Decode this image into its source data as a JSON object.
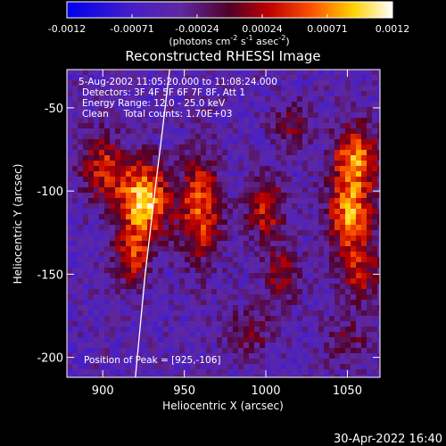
{
  "chart_data": {
    "type": "heatmap",
    "title": "Reconstructed RHESSI Image",
    "xlabel": "Heliocentric X (arcsec)",
    "ylabel": "Heliocentric Y (arcsec)",
    "xlim": [
      878,
      1070
    ],
    "ylim": [
      -212,
      -27
    ],
    "xticks": [
      900,
      950,
      1000,
      1050
    ],
    "yticks": [
      -50,
      -100,
      -150,
      -200
    ],
    "colorbar": {
      "ticks": [
        "-0.0012",
        "-0.00071",
        "-0.00024",
        "0.00024",
        "0.00071",
        "0.0012"
      ],
      "range": [
        -0.0012,
        0.0012
      ],
      "unit_label_parts": {
        "pre": "(photons cm",
        "exp1": "-2",
        "mid1": " s",
        "exp2": "-1",
        "mid2": " asec",
        "exp3": "-2",
        "post": ")"
      }
    },
    "annotations": [
      "5-Aug-2002 11:05:20.000 to 11:08:24.000",
      "Detectors: 3F 4F 5F 6F 7F 8F, Att 1",
      "Energy Range: 12.0 - 25.0 keV",
      "Clean     Total counts: 1.70E+03"
    ],
    "peak_label": "Position of Peak = [925,-106]",
    "peak": [
      925,
      -106
    ],
    "limb": [
      [
        941,
        -27
      ],
      [
        937,
        -60
      ],
      [
        932,
        -100
      ],
      [
        926,
        -150
      ],
      [
        920,
        -212
      ]
    ],
    "sources": [
      {
        "x": 900,
        "y": -85,
        "amp": 0.55,
        "sx": 10,
        "sy": 14
      },
      {
        "x": 925,
        "y": -106,
        "amp": 1.0,
        "sx": 11,
        "sy": 16
      },
      {
        "x": 918,
        "y": -140,
        "amp": 0.55,
        "sx": 8,
        "sy": 12
      },
      {
        "x": 960,
        "y": -110,
        "amp": 0.7,
        "sx": 9,
        "sy": 22
      },
      {
        "x": 1000,
        "y": -110,
        "amp": 0.55,
        "sx": 8,
        "sy": 14
      },
      {
        "x": 1010,
        "y": -150,
        "amp": 0.4,
        "sx": 8,
        "sy": 12
      },
      {
        "x": 1055,
        "y": -80,
        "amp": 0.75,
        "sx": 10,
        "sy": 14
      },
      {
        "x": 1052,
        "y": -115,
        "amp": 0.8,
        "sx": 10,
        "sy": 16
      },
      {
        "x": 1058,
        "y": -150,
        "amp": 0.45,
        "sx": 9,
        "sy": 12
      },
      {
        "x": 1015,
        "y": -60,
        "amp": 0.35,
        "sx": 8,
        "sy": 10
      },
      {
        "x": 990,
        "y": -185,
        "amp": 0.35,
        "sx": 10,
        "sy": 10
      },
      {
        "x": 1050,
        "y": -190,
        "amp": 0.3,
        "sx": 10,
        "sy": 10
      }
    ]
  },
  "footer": {
    "timestamp": "30-Apr-2022 16:40"
  }
}
